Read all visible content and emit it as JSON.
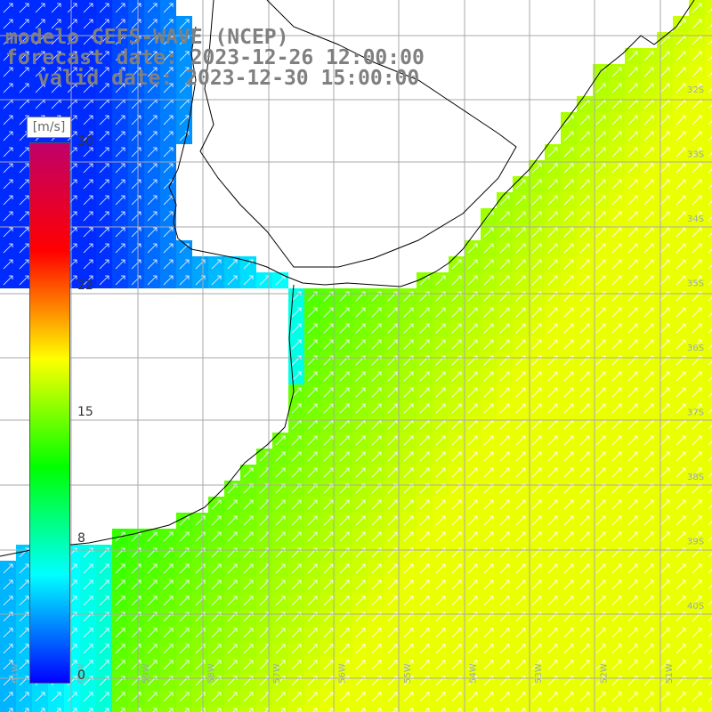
{
  "title": {
    "line1": "modelo GEFS-WAVE (NCEP)",
    "line2": "forecast date: 2023-12-26 12:00:00",
    "line3": "valid date: 2023-12-30 15:00:00"
  },
  "colorbar": {
    "units": "[m/s]",
    "ticks": [
      "30",
      "22",
      "15",
      "8",
      "0"
    ],
    "tick_values": [
      30,
      22,
      15,
      8,
      0
    ],
    "range": [
      0,
      30
    ],
    "stops": [
      "#0000ff",
      "#00ffff",
      "#00ff00",
      "#ffff00",
      "#ff0000",
      "#c0006a"
    ]
  },
  "map": {
    "longitude_labels": [
      "61W",
      "60W",
      "59W",
      "58W",
      "57W",
      "56W",
      "55W",
      "54W",
      "53W",
      "52W",
      "51W"
    ],
    "latitude_labels": [
      "32S",
      "33S",
      "34S",
      "35S",
      "36S",
      "37S",
      "38S",
      "39S",
      "40S"
    ],
    "colors": {
      "land": "#ffffff",
      "coast": "#000000",
      "grid": "#aaaaaa",
      "arrow": "#ffffff"
    }
  }
}
